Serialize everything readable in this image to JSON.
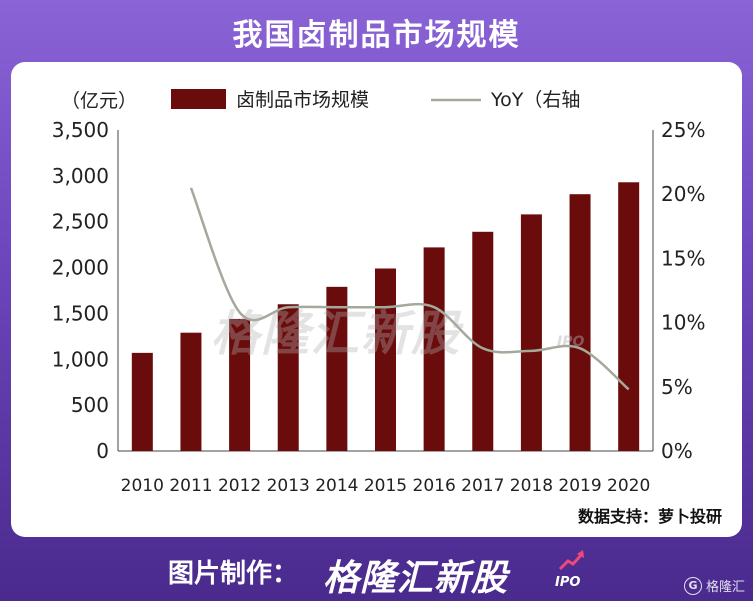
{
  "header": {
    "title": "我国卤制品市场规模"
  },
  "chart_data": {
    "type": "bar",
    "categories": [
      "2010",
      "2011",
      "2012",
      "2013",
      "2014",
      "2015",
      "2016",
      "2017",
      "2018",
      "2019",
      "2020"
    ],
    "series": [
      {
        "name": "卤制品市场规模",
        "type": "bar",
        "axis": "left",
        "color": "#6b0c0c",
        "values": [
          1070,
          1290,
          1440,
          1600,
          1790,
          1990,
          2220,
          2390,
          2580,
          2800,
          2930
        ]
      },
      {
        "name": "YoY（右轴",
        "type": "line",
        "axis": "right",
        "color": "#a3aa9b",
        "values": [
          null,
          20.5,
          10.8,
          11.2,
          11.2,
          11.2,
          11.2,
          8.0,
          7.8,
          8.0,
          4.8
        ]
      }
    ],
    "ylabel_left": "（亿元）",
    "ylim_left": [
      0,
      3500
    ],
    "yticks_left": [
      "0",
      "500",
      "1,000",
      "1,500",
      "2,000",
      "2,500",
      "3,000",
      "3,500"
    ],
    "ylim_right": [
      0,
      25
    ],
    "yticks_right": [
      "0%",
      "5%",
      "10%",
      "15%",
      "20%",
      "25%"
    ],
    "grid": false,
    "legend_position": "top"
  },
  "source": "数据支持：萝卜投研",
  "watermark": {
    "text": "格隆汇新股",
    "sub": "IPO"
  },
  "footer": {
    "label": "图片制作：",
    "brand": "格隆汇新股",
    "ipo": "IPO",
    "logo_text": "格隆汇"
  },
  "colors": {
    "background": "#6f47bf",
    "bar": "#6b0c0c",
    "line": "#a3aa9b"
  }
}
